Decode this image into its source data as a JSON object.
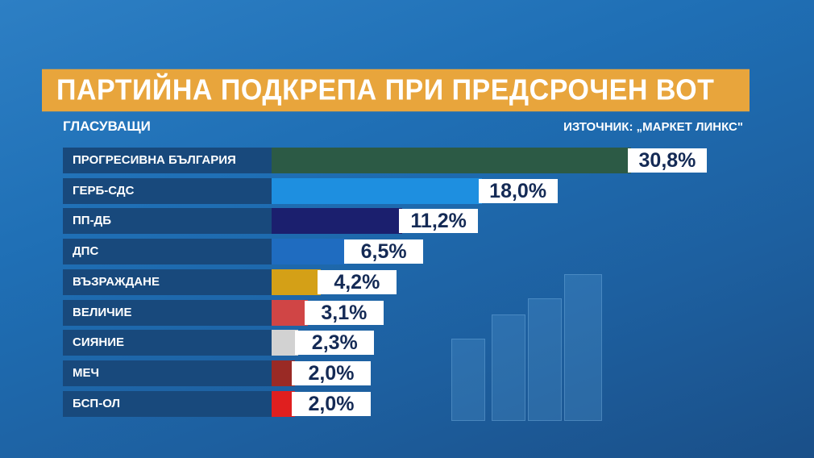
{
  "title": "ПАРТИЙНА ПОДКРЕПА ПРИ ПРЕДСРОЧЕН ВОТ",
  "subtitle": "ГЛАСУВАЩИ",
  "source": "ИЗТОЧНИК: „МАРКЕТ ЛИНКС\"",
  "chart_data": {
    "type": "bar",
    "orientation": "horizontal",
    "categories": [
      "ПРОГРЕСИВНА БЪЛГАРИЯ",
      "ГЕРБ-СДС",
      "ПП-ДБ",
      "ДПС",
      "ВЪЗРАЖДАНЕ",
      "ВЕЛИЧИЕ",
      "СИЯНИЕ",
      "МЕЧ",
      "БСП-ОЛ"
    ],
    "values": [
      30.8,
      18.0,
      11.2,
      6.5,
      4.2,
      3.1,
      2.3,
      2.0,
      2.0
    ],
    "labels": [
      "30,8%",
      "18,0%",
      "11,2%",
      "6,5%",
      "4,2%",
      "3,1%",
      "2,3%",
      "2,0%",
      "2,0%"
    ],
    "colors": [
      "#2c5a45",
      "#1e8fe0",
      "#1b1f6e",
      "#1f6cc0",
      "#d4a017",
      "#d04545",
      "#d2d2d2",
      "#9a2a25",
      "#e01f1f"
    ],
    "unit": "%"
  },
  "colors": {
    "title_bar": "#e8a53c",
    "label_bg": "#18497c"
  }
}
